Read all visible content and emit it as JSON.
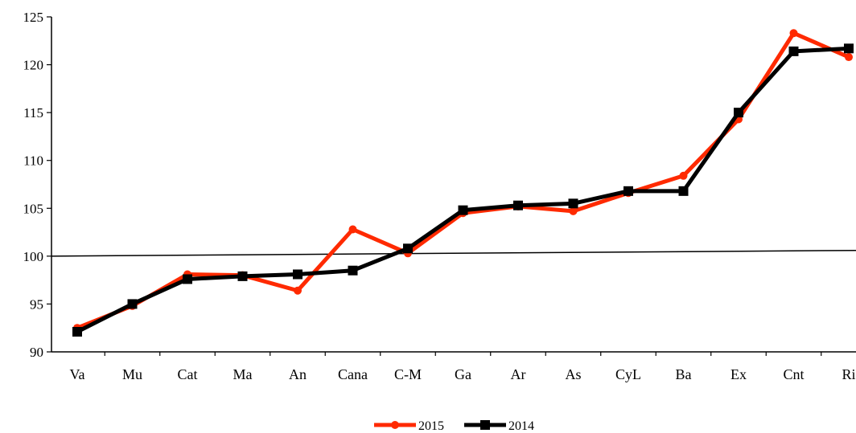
{
  "chart_data": {
    "type": "line",
    "title": "",
    "xlabel": "",
    "ylabel": "",
    "categories": [
      "Va",
      "Mu",
      "Cat",
      "Ma",
      "An",
      "Cana",
      "C-M",
      "Ga",
      "Ar",
      "As",
      "CyL",
      "Ba",
      "Ex",
      "Cnt",
      "Ri"
    ],
    "ylim": [
      90,
      125
    ],
    "yticks": [
      90,
      95,
      100,
      105,
      110,
      115,
      120,
      125
    ],
    "grid": false,
    "legend_position": "bottom-center",
    "series": [
      {
        "name": "2015",
        "color": "#ff2a00",
        "marker": "circle",
        "values": [
          92.5,
          94.8,
          98.1,
          98.0,
          96.4,
          102.8,
          100.3,
          104.5,
          105.2,
          104.7,
          106.6,
          108.4,
          114.3,
          123.3,
          120.8
        ]
      },
      {
        "name": "2014",
        "color": "#000000",
        "marker": "square",
        "values": [
          92.1,
          95.0,
          97.6,
          97.9,
          98.1,
          98.5,
          100.8,
          104.8,
          105.3,
          105.5,
          106.8,
          106.8,
          115.0,
          121.4,
          121.7
        ]
      }
    ],
    "reference_line": {
      "start": 100.0,
      "end": 100.6,
      "color": "#000000"
    }
  }
}
